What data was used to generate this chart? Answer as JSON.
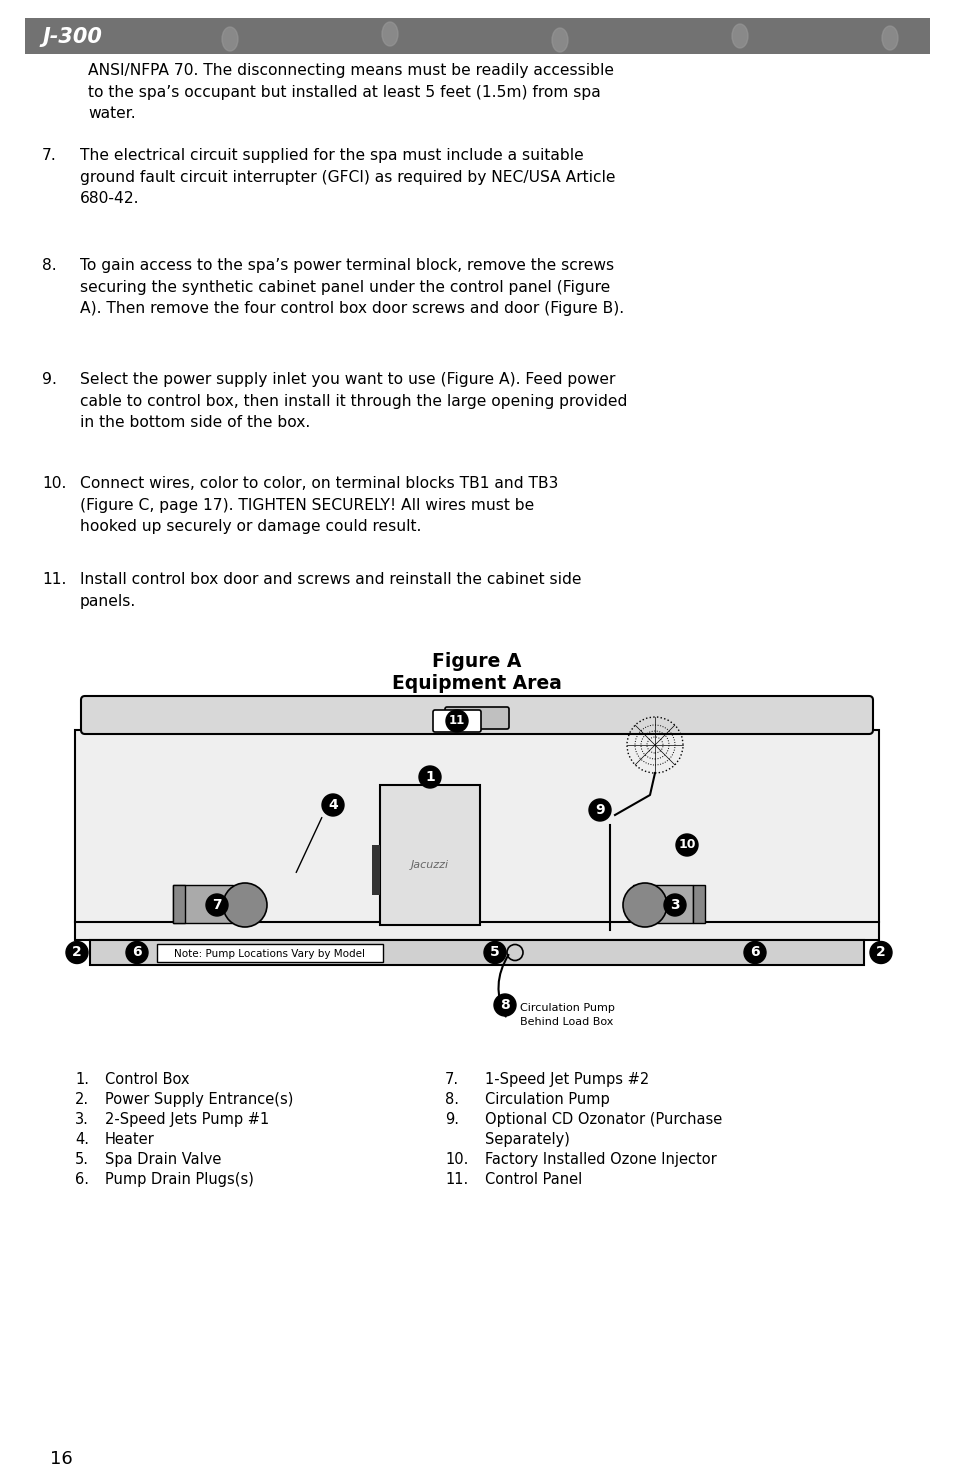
{
  "title_bar_text": "J-300",
  "background_color": "#FFFFFF",
  "page_number": "16",
  "body_text_color": "#000000",
  "intro_text": "ANSI/NFPA 70. The disconnecting means must be readily accessible\nto the spa’s occupant but installed at least 5 feet (1.5m) from spa\nwater.",
  "items": [
    {
      "number": "7.",
      "text": "The electrical circuit supplied for the spa must include a suitable\nground fault circuit interrupter (GFCI) as required by NEC/USA Article\n680-42."
    },
    {
      "number": "8.",
      "text": "To gain access to the spa’s power terminal block, remove the screws\nsecuring the synthetic cabinet panel under the control panel (Figure\nA). Then remove the four control box door screws and door (Figure B)."
    },
    {
      "number": "9.",
      "text": "Select the power supply inlet you want to use (Figure A). Feed power\ncable to control box, then install it through the large opening provided\nin the bottom side of the box."
    },
    {
      "number": "10.",
      "text": "Connect wires, color to color, on terminal blocks TB1 and TB3\n(Figure C, page 17). TIGHTEN SECURELY! All wires must be\nhooked up securely or damage could result."
    },
    {
      "number": "11.",
      "text": "Install control box door and screws and reinstall the cabinet side\npanels."
    }
  ],
  "figure_title_line1": "Figure A",
  "figure_title_line2": "Equipment Area",
  "legend_left": [
    [
      "1.",
      "Control Box"
    ],
    [
      "2.",
      "Power Supply Entrance(s)"
    ],
    [
      "3.",
      "2-Speed Jets Pump #1"
    ],
    [
      "4.",
      "Heater"
    ],
    [
      "5.",
      "Spa Drain Valve"
    ],
    [
      "6.",
      "Pump Drain Plugs(s)"
    ]
  ],
  "legend_right": [
    [
      "7.",
      "1-Speed Jet Pumps #2"
    ],
    [
      "8.",
      "Circulation Pump"
    ],
    [
      "9.",
      "Optional CD Ozonator (Purchase\nSeparately)"
    ],
    [
      "10.",
      "Factory Installed Ozone Injector"
    ],
    [
      "11.",
      "Control Panel"
    ]
  ],
  "font_size_body": 11.2,
  "font_size_legend": 10.5,
  "font_size_title_bold": 13.5
}
